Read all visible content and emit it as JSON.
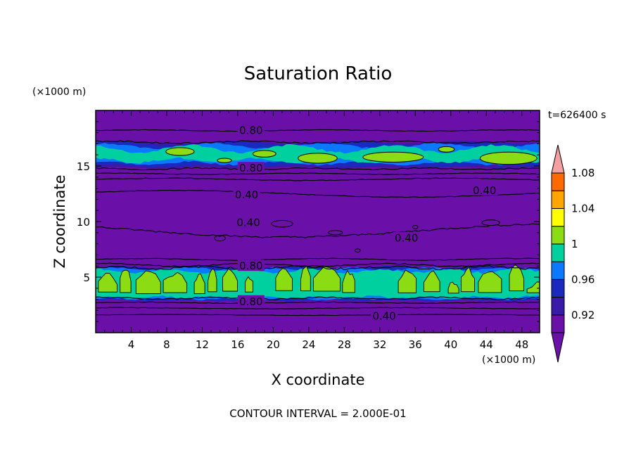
{
  "chart_data": {
    "type": "heatmap",
    "title": "Saturation Ratio",
    "xlabel": "X coordinate",
    "ylabel": "Z coordinate",
    "x_unit_label": "(×1000 m)",
    "y_unit_label": "(×1000 m)",
    "time_label": "t=626400 s",
    "footer": "CONTOUR INTERVAL = 2.000E-01",
    "xlim": [
      0,
      50
    ],
    "ylim": [
      0,
      20
    ],
    "x_ticks": [
      4,
      8,
      12,
      16,
      20,
      24,
      28,
      32,
      36,
      40,
      44,
      48
    ],
    "y_ticks": [
      5,
      10,
      15
    ],
    "contour_interval": 0.2,
    "contour_labels": [
      {
        "text": "0.80",
        "x": 17.5,
        "z": 18.2
      },
      {
        "text": "0.80",
        "x": 17.5,
        "z": 14.8
      },
      {
        "text": "0.40",
        "x": 17.0,
        "z": 12.4
      },
      {
        "text": "0.40",
        "x": 43.8,
        "z": 12.8
      },
      {
        "text": "0.40",
        "x": 17.2,
        "z": 9.9
      },
      {
        "text": "0.40",
        "x": 35.0,
        "z": 8.5
      },
      {
        "text": "0.80",
        "x": 17.5,
        "z": 6.0
      },
      {
        "text": "0.80",
        "x": 17.5,
        "z": 2.8
      },
      {
        "text": "0.40",
        "x": 32.5,
        "z": 1.5
      }
    ],
    "colorbar": {
      "levels": [
        0.92,
        0.94,
        0.96,
        0.98,
        1.0,
        1.02,
        1.04,
        1.06,
        1.08,
        1.1
      ],
      "labels": [
        "0.92",
        "0.96",
        "1",
        "1.04",
        "1.08"
      ],
      "colors": [
        "#6a0fa8",
        "#3a1aa8",
        "#1a2ac0",
        "#0a78ff",
        "#00d0a0",
        "#8cdc14",
        "#ffff00",
        "#ffa500",
        "#ff6a00",
        "#ff2020",
        "#f5a0a0"
      ],
      "under_color": "#6a0fa8",
      "over_color": "#f5a0a0"
    },
    "bands": [
      {
        "name": "upper",
        "z_bottom": 15.0,
        "z_top": 17.0
      },
      {
        "name": "lower",
        "z_bottom": 3.0,
        "z_top": 5.8
      }
    ]
  }
}
